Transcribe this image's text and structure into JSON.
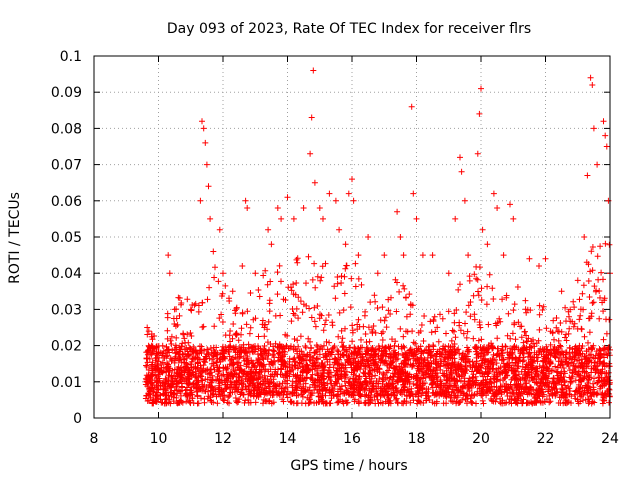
{
  "chart_data": {
    "type": "scatter",
    "title": "Day 093 of 2023, Rate Of TEC Index for receiver flrs",
    "xlabel": "GPS time / hours",
    "ylabel": "ROTI / TECUs",
    "xlim": [
      8,
      24
    ],
    "ylim": [
      0,
      0.1
    ],
    "x_ticks": [
      8,
      10,
      12,
      14,
      16,
      18,
      20,
      22,
      24
    ],
    "y_ticks": [
      0,
      0.01,
      0.02,
      0.03,
      0.04,
      0.05,
      0.06,
      0.07,
      0.08,
      0.09,
      0.1
    ],
    "x_tick_labels": [
      "8",
      "10",
      "12",
      "14",
      "16",
      "18",
      "20",
      "22",
      "24"
    ],
    "y_tick_labels": [
      "0",
      "0.01",
      "0.02",
      "0.03",
      "0.04",
      "0.05",
      "0.06",
      "0.07",
      "0.08",
      "0.09",
      "0.1"
    ],
    "grid": true,
    "marker": "+",
    "marker_color": "#ff0000",
    "x_data_start": 9.6,
    "x_data_end": 24.0,
    "points": [
      [
        9.65,
        0.025
      ],
      [
        9.7,
        0.024
      ],
      [
        9.8,
        0.018
      ],
      [
        10.0,
        0.012
      ],
      [
        10.3,
        0.045
      ],
      [
        10.35,
        0.04
      ],
      [
        10.5,
        0.03
      ],
      [
        10.8,
        0.022
      ],
      [
        11.0,
        0.03
      ],
      [
        11.3,
        0.06
      ],
      [
        11.35,
        0.082
      ],
      [
        11.4,
        0.08
      ],
      [
        11.45,
        0.076
      ],
      [
        11.5,
        0.07
      ],
      [
        11.55,
        0.064
      ],
      [
        11.6,
        0.055
      ],
      [
        11.7,
        0.046
      ],
      [
        11.9,
        0.052
      ],
      [
        12.0,
        0.04
      ],
      [
        12.3,
        0.035
      ],
      [
        12.6,
        0.042
      ],
      [
        12.7,
        0.06
      ],
      [
        12.75,
        0.058
      ],
      [
        13.0,
        0.04
      ],
      [
        13.4,
        0.052
      ],
      [
        13.5,
        0.048
      ],
      [
        13.7,
        0.058
      ],
      [
        13.8,
        0.055
      ],
      [
        14.0,
        0.061
      ],
      [
        14.2,
        0.055
      ],
      [
        14.5,
        0.058
      ],
      [
        14.7,
        0.073
      ],
      [
        14.75,
        0.083
      ],
      [
        14.8,
        0.096
      ],
      [
        14.85,
        0.065
      ],
      [
        15.0,
        0.058
      ],
      [
        15.1,
        0.055
      ],
      [
        15.3,
        0.062
      ],
      [
        15.5,
        0.06
      ],
      [
        15.6,
        0.052
      ],
      [
        15.8,
        0.048
      ],
      [
        15.9,
        0.062
      ],
      [
        16.0,
        0.066
      ],
      [
        16.05,
        0.06
      ],
      [
        16.2,
        0.045
      ],
      [
        16.5,
        0.05
      ],
      [
        16.8,
        0.04
      ],
      [
        17.0,
        0.045
      ],
      [
        17.4,
        0.057
      ],
      [
        17.5,
        0.05
      ],
      [
        17.6,
        0.045
      ],
      [
        17.85,
        0.086
      ],
      [
        17.9,
        0.062
      ],
      [
        18.0,
        0.055
      ],
      [
        18.2,
        0.045
      ],
      [
        18.5,
        0.045
      ],
      [
        19.0,
        0.04
      ],
      [
        19.2,
        0.055
      ],
      [
        19.35,
        0.072
      ],
      [
        19.4,
        0.068
      ],
      [
        19.5,
        0.06
      ],
      [
        19.6,
        0.045
      ],
      [
        19.9,
        0.073
      ],
      [
        19.95,
        0.084
      ],
      [
        20.0,
        0.091
      ],
      [
        20.05,
        0.052
      ],
      [
        20.2,
        0.048
      ],
      [
        20.4,
        0.062
      ],
      [
        20.5,
        0.058
      ],
      [
        20.7,
        0.045
      ],
      [
        20.9,
        0.059
      ],
      [
        21.0,
        0.055
      ],
      [
        21.5,
        0.044
      ],
      [
        21.8,
        0.042
      ],
      [
        22.0,
        0.044
      ],
      [
        22.5,
        0.035
      ],
      [
        23.0,
        0.038
      ],
      [
        23.2,
        0.05
      ],
      [
        23.3,
        0.067
      ],
      [
        23.4,
        0.094
      ],
      [
        23.45,
        0.092
      ],
      [
        23.5,
        0.08
      ],
      [
        23.6,
        0.07
      ],
      [
        23.8,
        0.082
      ],
      [
        23.85,
        0.078
      ],
      [
        23.9,
        0.075
      ],
      [
        23.95,
        0.06
      ],
      [
        24.0,
        0.04
      ]
    ],
    "envelope_x": [
      9.6,
      10.0,
      10.5,
      11.0,
      11.4,
      12.0,
      12.5,
      13.0,
      13.5,
      14.0,
      14.5,
      15.0,
      15.5,
      16.0,
      16.5,
      17.0,
      17.5,
      18.0,
      18.5,
      19.0,
      19.5,
      20.0,
      20.5,
      21.0,
      21.5,
      22.0,
      22.5,
      23.0,
      23.5,
      24.0
    ],
    "envelope_upper": [
      0.025,
      0.022,
      0.035,
      0.035,
      0.05,
      0.04,
      0.035,
      0.04,
      0.042,
      0.045,
      0.045,
      0.045,
      0.04,
      0.045,
      0.035,
      0.033,
      0.042,
      0.03,
      0.028,
      0.03,
      0.04,
      0.045,
      0.036,
      0.04,
      0.03,
      0.032,
      0.03,
      0.035,
      0.05,
      0.05
    ],
    "dense_band": [
      0.006,
      0.02
    ]
  }
}
